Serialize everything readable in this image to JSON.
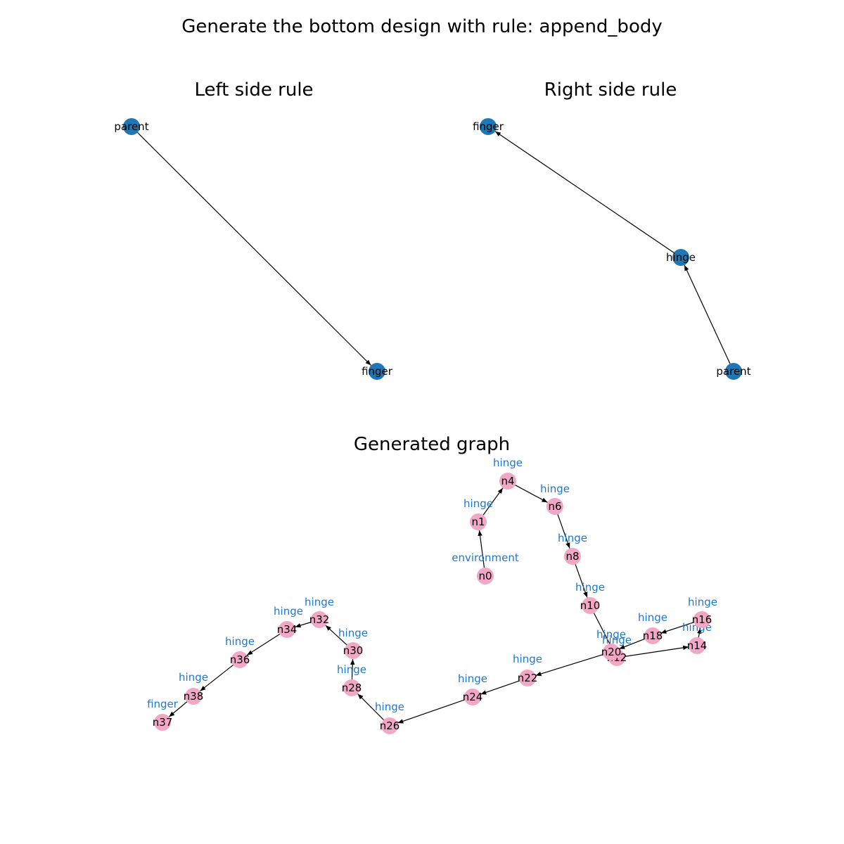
{
  "colors": {
    "rule_node": "#1f77b4",
    "graph_node": "#f1a7c5",
    "type_label": "#1f77d0"
  },
  "titles": {
    "main": "Generate the bottom design with rule: append_body",
    "left": "Left side rule",
    "right": "Right side rule",
    "generated": "Generated graph"
  },
  "left_rule": {
    "nodes": [
      {
        "id": "parent",
        "label": "parent"
      },
      {
        "id": "finger",
        "label": "finger"
      }
    ],
    "edges": [
      {
        "from": "parent",
        "to": "finger"
      }
    ]
  },
  "right_rule": {
    "nodes": [
      {
        "id": "finger",
        "label": "finger"
      },
      {
        "id": "hinge",
        "label": "hinge"
      },
      {
        "id": "parent",
        "label": "parent"
      }
    ],
    "edges": [
      {
        "from": "hinge",
        "to": "finger"
      },
      {
        "from": "parent",
        "to": "hinge"
      }
    ]
  },
  "generated_graph": {
    "nodes": [
      {
        "id": "n0",
        "label": "n0",
        "type": "environment"
      },
      {
        "id": "n1",
        "label": "n1",
        "type": "hinge"
      },
      {
        "id": "n4",
        "label": "n4",
        "type": "hinge"
      },
      {
        "id": "n6",
        "label": "n6",
        "type": "hinge"
      },
      {
        "id": "n8",
        "label": "n8",
        "type": "hinge"
      },
      {
        "id": "n10",
        "label": "n10",
        "type": "hinge"
      },
      {
        "id": "n12",
        "label": "n12",
        "type": "hinge"
      },
      {
        "id": "n14",
        "label": "n14",
        "type": "hinge"
      },
      {
        "id": "n16",
        "label": "n16",
        "type": "hinge"
      },
      {
        "id": "n18",
        "label": "n18",
        "type": "hinge"
      },
      {
        "id": "n20",
        "label": "n20",
        "type": "hinge"
      },
      {
        "id": "n22",
        "label": "n22",
        "type": "hinge"
      },
      {
        "id": "n24",
        "label": "n24",
        "type": "hinge"
      },
      {
        "id": "n26",
        "label": "n26",
        "type": "hinge"
      },
      {
        "id": "n28",
        "label": "n28",
        "type": "hinge"
      },
      {
        "id": "n30",
        "label": "n30",
        "type": "hinge"
      },
      {
        "id": "n32",
        "label": "n32",
        "type": "hinge"
      },
      {
        "id": "n34",
        "label": "n34",
        "type": "hinge"
      },
      {
        "id": "n36",
        "label": "n36",
        "type": "hinge"
      },
      {
        "id": "n38",
        "label": "n38",
        "type": "hinge"
      },
      {
        "id": "n37",
        "label": "n37",
        "type": "finger"
      }
    ],
    "edges": [
      {
        "from": "n0",
        "to": "n1"
      },
      {
        "from": "n1",
        "to": "n4"
      },
      {
        "from": "n4",
        "to": "n6"
      },
      {
        "from": "n6",
        "to": "n8"
      },
      {
        "from": "n8",
        "to": "n10"
      },
      {
        "from": "n10",
        "to": "n12"
      },
      {
        "from": "n12",
        "to": "n14"
      },
      {
        "from": "n14",
        "to": "n16"
      },
      {
        "from": "n16",
        "to": "n18"
      },
      {
        "from": "n18",
        "to": "n20"
      },
      {
        "from": "n20",
        "to": "n22"
      },
      {
        "from": "n22",
        "to": "n24"
      },
      {
        "from": "n24",
        "to": "n26"
      },
      {
        "from": "n26",
        "to": "n28"
      },
      {
        "from": "n28",
        "to": "n30"
      },
      {
        "from": "n30",
        "to": "n32"
      },
      {
        "from": "n32",
        "to": "n34"
      },
      {
        "from": "n34",
        "to": "n36"
      },
      {
        "from": "n36",
        "to": "n38"
      },
      {
        "from": "n38",
        "to": "n37"
      }
    ]
  }
}
